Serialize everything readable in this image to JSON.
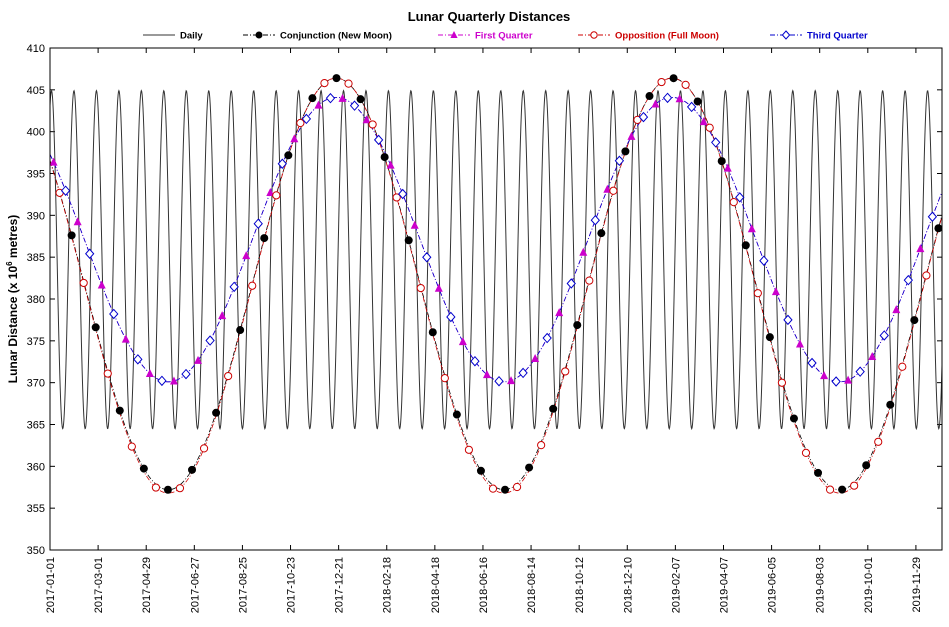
{
  "chart_data": {
    "type": "line",
    "title": "Lunar Quarterly Distances",
    "ylabel": "Lunar Distance (x 10",
    "ylabel_sup": "6",
    "ylabel_tail": " metres)",
    "xlabel": "",
    "x_range": [
      "2017-01-01",
      "2019-12-31"
    ],
    "ylim": [
      350,
      410
    ],
    "y_ticks": [
      350,
      355,
      360,
      365,
      370,
      375,
      380,
      385,
      390,
      395,
      400,
      405,
      410
    ],
    "x_ticks": [
      "2017-01-01",
      "2017-03-01",
      "2017-04-29",
      "2017-06-27",
      "2017-08-25",
      "2017-10-23",
      "2017-12-21",
      "2018-02-18",
      "2018-04-18",
      "2018-06-16",
      "2018-08-14",
      "2018-10-12",
      "2018-12-10",
      "2019-02-07",
      "2019-04-07",
      "2019-06-05",
      "2019-08-03",
      "2019-10-01",
      "2019-11-29"
    ],
    "grid": false,
    "legend_position": "top",
    "series": [
      {
        "name": "Daily",
        "style": "solid",
        "color": "#333333",
        "marker": "none",
        "model": {
          "mean": 384.7,
          "amplitude": 20.2,
          "period_days": 27.55,
          "reference_date": "2017-12-27"
        }
      },
      {
        "name": "Conjunction (New Moon)",
        "style": "dash-dot",
        "color": "#000000",
        "marker": "filled-circle",
        "model": {
          "mean": 381.8,
          "amplitude": 24.6,
          "period_days": 411.8,
          "max_date": "2017-12-18",
          "phase_days": 0.0
        }
      },
      {
        "name": "First Quarter",
        "style": "dash-dot",
        "color": "#cc00cc",
        "marker": "filled-triangle",
        "model": {
          "mean": 387.1,
          "amplitude": 17.0,
          "period_days": 411.8,
          "max_date": "2017-12-18",
          "phase_days": 7.38
        }
      },
      {
        "name": "Opposition (Full Moon)",
        "style": "dash-dot",
        "color": "#cc0000",
        "marker": "open-circle",
        "model": {
          "mean": 381.6,
          "amplitude": 24.8,
          "period_days": 411.8,
          "max_date": "2017-12-18",
          "phase_days": 14.77
        }
      },
      {
        "name": "Third Quarter",
        "style": "dash-dot",
        "color": "#0000cc",
        "marker": "open-diamond",
        "model": {
          "mean": 387.1,
          "amplitude": 17.0,
          "period_days": 411.8,
          "max_date": "2017-12-18",
          "phase_days": 22.15
        }
      }
    ],
    "lunation": {
      "period_days": 29.53,
      "first_new_moon": "2016-12-29"
    }
  }
}
